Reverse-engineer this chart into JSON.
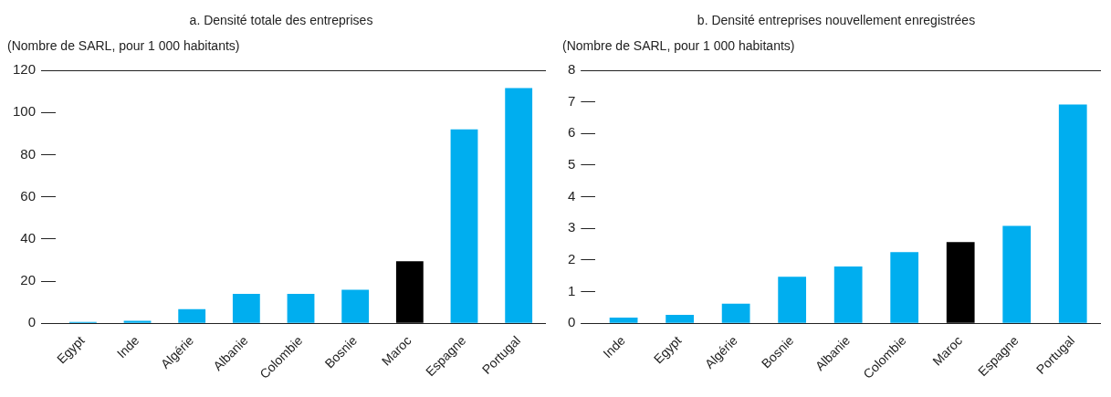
{
  "chart_data": [
    {
      "type": "bar",
      "title": "a. Densité totale des entreprises",
      "ylabel": "(Nombre de SARL, pour 1 000 habitants)",
      "categories": [
        "Egypt",
        "Inde",
        "Algérie",
        "Albanie",
        "Colombie",
        "Bosnie",
        "Maroc",
        "Espagne",
        "Portugal"
      ],
      "values": [
        0.7,
        1.2,
        6.7,
        14,
        14,
        15.9,
        29.5,
        92,
        111.6
      ],
      "colors": [
        "#00aeef",
        "#00aeef",
        "#00aeef",
        "#00aeef",
        "#00aeef",
        "#00aeef",
        "#000000",
        "#00aeef",
        "#00aeef"
      ],
      "ylim": [
        0,
        120
      ],
      "yticks": [
        0,
        20,
        40,
        60,
        80,
        100,
        120
      ]
    },
    {
      "type": "bar",
      "title": "b. Densité entreprises nouvellement enregistrées",
      "ylabel": "(Nombre de SARL, pour 1 000 habitants)",
      "categories": [
        "Inde",
        "Egypt",
        "Algérie",
        "Bosnie",
        "Albanie",
        "Colombie",
        "Maroc",
        "Espagne",
        "Portugal"
      ],
      "values": [
        0.18,
        0.27,
        0.62,
        1.47,
        1.8,
        2.25,
        2.57,
        3.08,
        6.92
      ],
      "colors": [
        "#00aeef",
        "#00aeef",
        "#00aeef",
        "#00aeef",
        "#00aeef",
        "#00aeef",
        "#000000",
        "#00aeef",
        "#00aeef"
      ],
      "ylim": [
        0,
        8
      ],
      "yticks": [
        0,
        1,
        2,
        3,
        4,
        5,
        6,
        7,
        8
      ]
    }
  ]
}
